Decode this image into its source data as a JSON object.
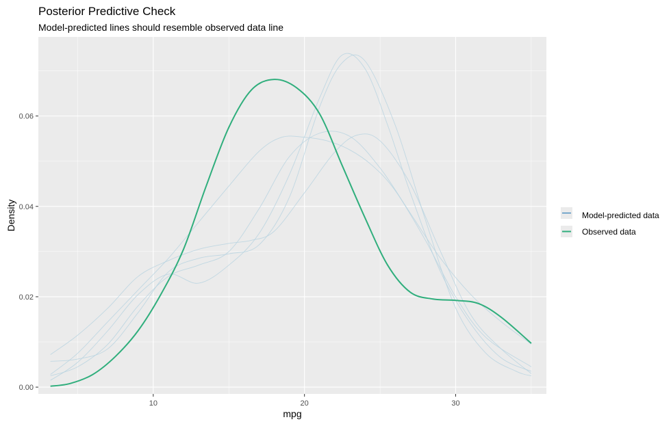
{
  "chart_data": {
    "type": "line",
    "title": "Posterior Predictive Check",
    "subtitle": "Model-predicted lines should resemble observed data line",
    "xlabel": "mpg",
    "ylabel": "Density",
    "xlim": [
      2.4,
      36.0
    ],
    "ylim": [
      -0.0015,
      0.0775
    ],
    "x_ticks": [
      10,
      20,
      30
    ],
    "x_tick_labels": [
      "10",
      "20",
      "30"
    ],
    "y_ticks": [
      0.0,
      0.02,
      0.04,
      0.06
    ],
    "y_tick_labels": [
      "0.00",
      "0.02",
      "0.04",
      "0.06"
    ],
    "grid": true,
    "legend": {
      "position": "right",
      "entries": [
        {
          "label": "Model-predicted data",
          "color": "#2f7fb8"
        },
        {
          "label": "Observed data",
          "color": "#2fae7c"
        }
      ]
    },
    "colors": {
      "panel_background": "#ebebeb",
      "grid": "#ffffff",
      "predicted": "#b8d3e0",
      "observed": "#2fae7c"
    },
    "series": [
      {
        "role": "observed",
        "x": [
          3.2,
          4.5,
          6,
          7.5,
          9,
          10.5,
          12,
          13.5,
          15,
          16.5,
          18,
          19.5,
          21,
          22.5,
          24,
          25.5,
          27,
          28.5,
          30,
          31.5,
          33,
          35
        ],
        "values": [
          0.0002,
          0.0008,
          0.0028,
          0.0068,
          0.0125,
          0.0205,
          0.0305,
          0.0445,
          0.0575,
          0.0658,
          0.0681,
          0.0662,
          0.0605,
          0.049,
          0.0375,
          0.027,
          0.021,
          0.0195,
          0.0192,
          0.0185,
          0.0155,
          0.0097
        ]
      },
      {
        "role": "predicted",
        "x": [
          3.2,
          5,
          7,
          9,
          11,
          13,
          15,
          17,
          19,
          21,
          22.5,
          24,
          26,
          28,
          30,
          32,
          34,
          35
        ],
        "values": [
          0.0057,
          0.0062,
          0.0085,
          0.0165,
          0.0255,
          0.0285,
          0.0295,
          0.0315,
          0.042,
          0.062,
          0.0718,
          0.0722,
          0.058,
          0.037,
          0.0175,
          0.0075,
          0.0035,
          0.0025
        ]
      },
      {
        "role": "predicted",
        "x": [
          3.2,
          5,
          7,
          9,
          11,
          13,
          15,
          16.5,
          18,
          20,
          22,
          23.5,
          25,
          27,
          29,
          31,
          33,
          35
        ],
        "values": [
          0.0072,
          0.0115,
          0.0175,
          0.0245,
          0.028,
          0.0305,
          0.0318,
          0.0325,
          0.0345,
          0.043,
          0.052,
          0.0558,
          0.0545,
          0.045,
          0.03,
          0.016,
          0.0085,
          0.003
        ]
      },
      {
        "role": "predicted",
        "x": [
          3.2,
          5,
          7,
          9,
          11,
          13,
          15,
          17,
          19,
          21,
          22.5,
          24,
          25.5,
          27,
          29,
          31,
          33,
          35
        ],
        "values": [
          0.0015,
          0.0055,
          0.0125,
          0.0205,
          0.025,
          0.023,
          0.027,
          0.034,
          0.047,
          0.064,
          0.0735,
          0.0705,
          0.058,
          0.043,
          0.0255,
          0.014,
          0.0065,
          0.0035
        ]
      },
      {
        "role": "predicted",
        "x": [
          3.2,
          5,
          7,
          9,
          11,
          13,
          15,
          17,
          18.5,
          20,
          21.5,
          23,
          24.5,
          26,
          28,
          30,
          32,
          35
        ],
        "values": [
          0.0028,
          0.0075,
          0.0145,
          0.0215,
          0.0285,
          0.0365,
          0.0445,
          0.0522,
          0.0553,
          0.0553,
          0.0545,
          0.0525,
          0.049,
          0.0435,
          0.0325,
          0.02,
          0.011,
          0.0045
        ]
      },
      {
        "role": "predicted",
        "x": [
          3.2,
          5,
          7,
          9,
          11,
          13,
          15,
          17,
          19,
          21,
          23,
          25,
          27,
          29,
          31,
          33,
          35
        ],
        "values": [
          0.0025,
          0.0045,
          0.0095,
          0.018,
          0.0245,
          0.027,
          0.03,
          0.0395,
          0.051,
          0.0562,
          0.0555,
          0.0485,
          0.0385,
          0.0285,
          0.0205,
          0.0145,
          0.0095
        ]
      }
    ]
  }
}
